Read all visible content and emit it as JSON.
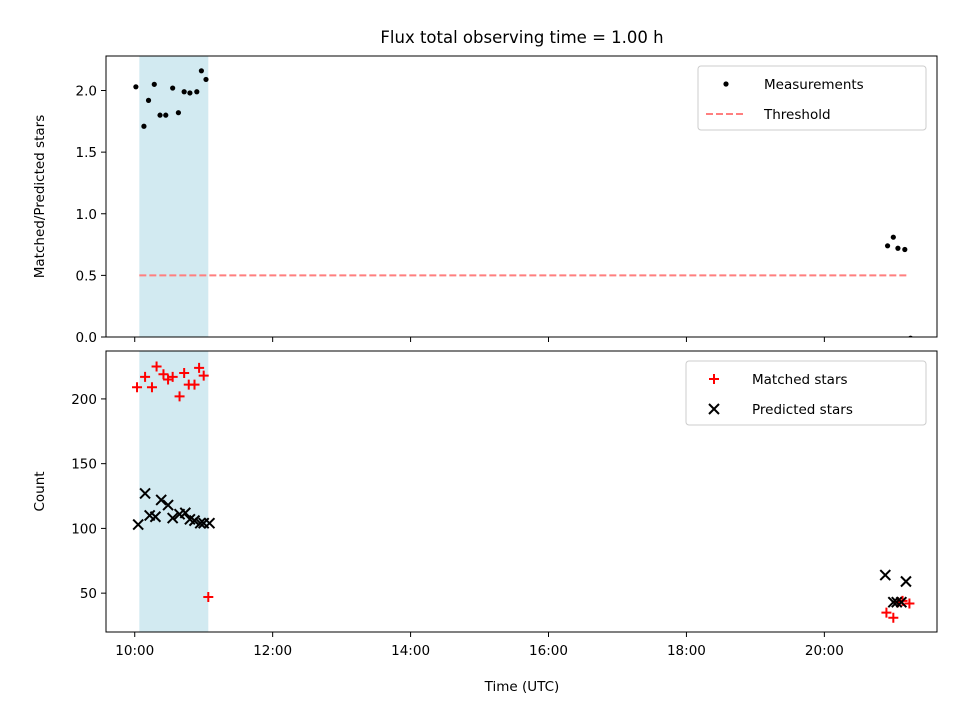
{
  "figure": {
    "title": "Flux total observing time = 1.00 h",
    "xlabel": "Time (UTC)",
    "x_tick_labels": [
      "10:00",
      "12:00",
      "14:00",
      "16:00",
      "18:00",
      "20:00"
    ]
  },
  "colors": {
    "measurements": "#000000",
    "threshold": "#ff7f7f",
    "matched": "#ff0000",
    "predicted": "#000000",
    "shade": "#add8e6"
  },
  "chart_data": [
    {
      "type": "scatter",
      "ylabel": "Matched/Predicted stars",
      "xlim": [
        "09:35",
        "21:38"
      ],
      "ylim": [
        0,
        2.28
      ],
      "y_tick_labels": [
        "0.0",
        "0.5",
        "1.0",
        "1.5",
        "2.0"
      ],
      "shaded_interval": [
        "10:04",
        "11:04"
      ],
      "legend_position": "upper right",
      "series": [
        {
          "name": "Measurements",
          "marker": "dot",
          "x": [
            "10:01",
            "10:08",
            "10:12",
            "10:17",
            "10:22",
            "10:27",
            "10:33",
            "10:38",
            "10:43",
            "10:48",
            "10:54",
            "10:58",
            "11:02",
            "20:55",
            "21:00",
            "21:04",
            "21:10",
            "21:15"
          ],
          "y": [
            2.03,
            1.71,
            1.92,
            2.05,
            1.8,
            1.8,
            2.02,
            1.82,
            1.99,
            1.98,
            1.99,
            2.16,
            2.09,
            0.74,
            0.81,
            0.72,
            0.71,
            -0.01
          ]
        },
        {
          "name": "Threshold",
          "style": "dashed",
          "x": [
            "10:04",
            "21:12"
          ],
          "y": [
            0.5,
            0.5
          ]
        }
      ]
    },
    {
      "type": "scatter",
      "ylabel": "Count",
      "xlim": [
        "09:35",
        "21:38"
      ],
      "ylim": [
        20,
        237
      ],
      "y_tick_labels": [
        "50",
        "100",
        "150",
        "200"
      ],
      "shaded_interval": [
        "10:04",
        "11:04"
      ],
      "legend_position": "upper right",
      "series": [
        {
          "name": "Matched stars",
          "marker": "plus",
          "x": [
            "10:02",
            "10:09",
            "10:15",
            "10:19",
            "10:25",
            "10:29",
            "10:33",
            "10:39",
            "10:43",
            "10:47",
            "10:52",
            "10:56",
            "11:00",
            "11:04",
            "20:54",
            "21:00",
            "21:04",
            "21:08",
            "21:14"
          ],
          "y": [
            209,
            217,
            209,
            225,
            219,
            215,
            217,
            202,
            220,
            211,
            211,
            224,
            218,
            47,
            35,
            31,
            43,
            44,
            42
          ]
        },
        {
          "name": "Predicted stars",
          "marker": "x",
          "x": [
            "10:03",
            "10:09",
            "10:13",
            "10:18",
            "10:23",
            "10:29",
            "10:33",
            "10:39",
            "10:44",
            "10:48",
            "10:52",
            "10:57",
            "11:00",
            "11:05",
            "20:53",
            "21:00",
            "21:03",
            "21:07",
            "21:11"
          ],
          "y": [
            103,
            127,
            110,
            109,
            122,
            118,
            108,
            111,
            112,
            107,
            106,
            104,
            104,
            104,
            64,
            43,
            43,
            43,
            59
          ]
        }
      ]
    }
  ]
}
